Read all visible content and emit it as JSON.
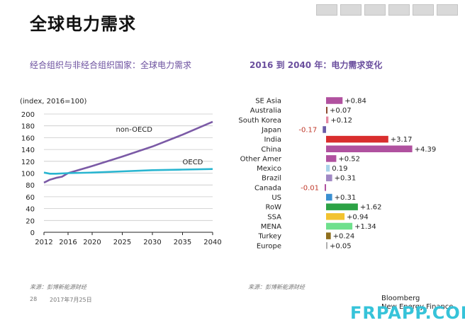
{
  "page": {
    "title": "全球电力需求",
    "page_number": "28",
    "date": "2017年7月25日",
    "brand_line1": "Bloomberg",
    "brand_line2": "New Energy Finance",
    "watermark": "FRPAPP.COM"
  },
  "colors": {
    "non_oecd": "#7b5aa6",
    "oecd": "#29b5d0",
    "subtitle": "#6b4f9e",
    "watermark": "#36c3d9"
  },
  "chart_data": [
    {
      "type": "line",
      "title": "经合组织与非经合组织国家：全球电力需求",
      "ylabel": "(index, 2016=100)",
      "source": "来源：彭博新能源财经",
      "ylim": [
        0,
        200
      ],
      "yticks": [
        0,
        20,
        40,
        60,
        80,
        100,
        120,
        140,
        160,
        180,
        200
      ],
      "xlim": [
        2012,
        2040
      ],
      "xticks": [
        2012,
        2016,
        2020,
        2025,
        2030,
        2035,
        2040
      ],
      "series": [
        {
          "name": "non-OECD",
          "color": "#7b5aa6",
          "x": [
            2012,
            2013,
            2014,
            2015,
            2016,
            2018,
            2020,
            2025,
            2030,
            2035,
            2040
          ],
          "y": [
            84,
            89,
            92,
            94,
            100,
            106,
            112,
            128,
            145,
            165,
            187
          ]
        },
        {
          "name": "OECD",
          "color": "#29b5d0",
          "x": [
            2012,
            2013,
            2014,
            2016,
            2020,
            2025,
            2030,
            2035,
            2040
          ],
          "y": [
            101,
            99,
            99,
            100,
            101,
            103,
            105,
            106,
            107
          ]
        }
      ]
    },
    {
      "type": "bar",
      "orientation": "horizontal",
      "title": "2016 到 2040 年：电力需求变化",
      "source": "来源：彭博新能源财经",
      "categories": [
        "SE Asia",
        "Australia",
        "South Korea",
        "Japan",
        "India",
        "China",
        "Other Amer",
        "Mexico",
        "Brazil",
        "Canada",
        "US",
        "RoW",
        "SSA",
        "MENA",
        "Turkey",
        "Europe"
      ],
      "values": [
        0.84,
        0.07,
        0.12,
        -0.17,
        3.17,
        4.39,
        0.52,
        0.19,
        0.31,
        -0.01,
        0.31,
        1.62,
        0.94,
        1.34,
        0.24,
        0.05
      ],
      "labels": [
        "+0.84",
        "+0.07",
        "+0.12",
        "-0.17",
        "+3.17",
        "+4.39",
        "+0.52",
        "0.19",
        "+0.31",
        "-0.01",
        "+0.31",
        "+1.62",
        "+0.94",
        "+1.34",
        "+0.24",
        "+0.05"
      ],
      "colors": [
        "#b0519f",
        "#8b4a2e",
        "#e58aa3",
        "#6a5ca8",
        "#d92e2e",
        "#b0519f",
        "#b0519f",
        "#a8d3ea",
        "#a088c4",
        "#b0519f",
        "#3a8fd1",
        "#2ca245",
        "#f2c330",
        "#6fe08d",
        "#8f6f1d",
        "#b0b0b0"
      ]
    }
  ]
}
